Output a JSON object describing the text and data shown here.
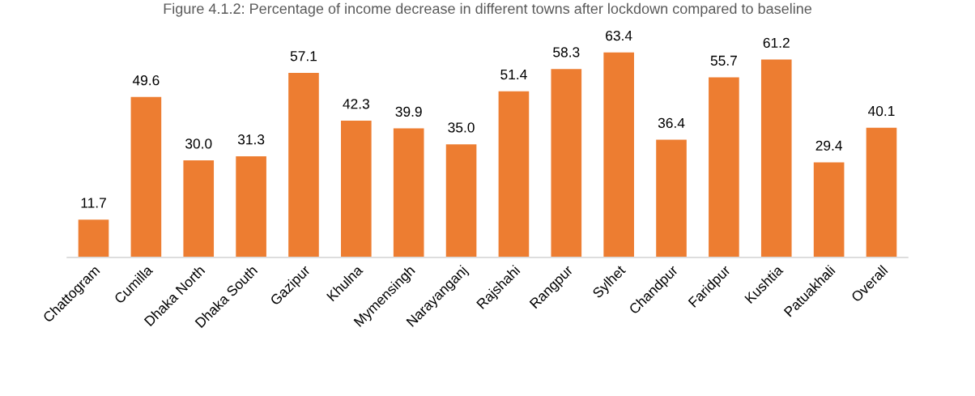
{
  "chart_data": {
    "type": "bar",
    "title": "Figure 4.1.2: Percentage of income decrease in different towns after lockdown compared to baseline",
    "categories": [
      "Chattogram",
      "Cumilla",
      "Dhaka North",
      "Dhaka South",
      "Gazipur",
      "Khulna",
      "Mymensingh",
      "Narayanganj",
      "Rajshahi",
      "Rangpur",
      "Sylhet",
      "Chandpur",
      "Faridpur",
      "Kushtia",
      "Patuakhali",
      "Overall"
    ],
    "values": [
      11.7,
      49.6,
      30,
      31.3,
      57.1,
      42.3,
      39.9,
      35,
      51.4,
      58.3,
      63.4,
      36.4,
      55.7,
      61.2,
      29.4,
      40.1
    ],
    "value_labels": [
      "11.7",
      "49.6",
      "30.0",
      "31.3",
      "57.1",
      "42.3",
      "39.9",
      "35.0",
      "51.4",
      "58.3",
      "63.4",
      "36.4",
      "55.7",
      "61.2",
      "29.4",
      "40.1"
    ],
    "color": "#ed7d31",
    "tick_labels": "x",
    "grid": false,
    "legend": false
  }
}
